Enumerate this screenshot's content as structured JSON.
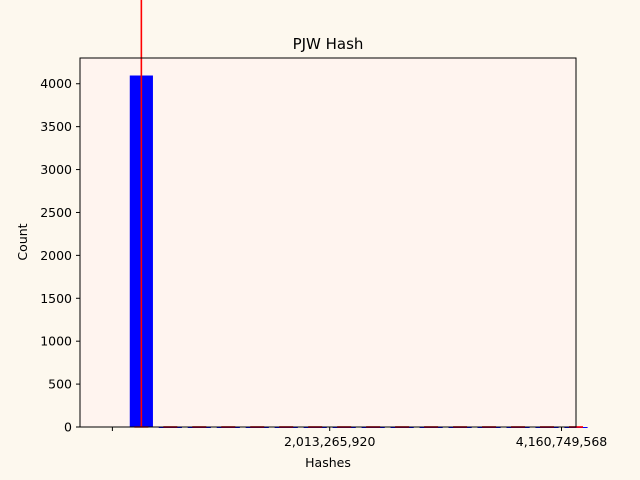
{
  "chart_data": {
    "type": "bar",
    "title": "PJW Hash",
    "xlabel": "Hashes",
    "ylabel": "Count",
    "xlim": [
      -300000000,
      4294967295
    ],
    "ylim": [
      0,
      4300
    ],
    "x_ticks": [
      {
        "value": 0,
        "label": ""
      },
      {
        "value": 2013265920,
        "label": "2,013,265,920"
      },
      {
        "value": 4160749568,
        "label": "4,160,749,568"
      }
    ],
    "y_ticks": [
      0,
      500,
      1000,
      1500,
      2000,
      2500,
      3000,
      3500,
      4000
    ],
    "series": [
      {
        "values": [
          {
            "x": 268435456,
            "count": 4096,
            "error": 4096
          },
          {
            "x": 536870912,
            "count": 0,
            "error": 0
          },
          {
            "x": 805306368,
            "count": 0,
            "error": 0
          },
          {
            "x": 1073741824,
            "count": 0,
            "error": 0
          },
          {
            "x": 1342177280,
            "count": 0,
            "error": 0
          },
          {
            "x": 1610612736,
            "count": 0,
            "error": 0
          },
          {
            "x": 1879048192,
            "count": 0,
            "error": 0
          },
          {
            "x": 2147483648,
            "count": 0,
            "error": 0
          },
          {
            "x": 2415919104,
            "count": 0,
            "error": 0
          },
          {
            "x": 2684354560,
            "count": 0,
            "error": 0
          },
          {
            "x": 2952790016,
            "count": 0,
            "error": 0
          },
          {
            "x": 3221225472,
            "count": 0,
            "error": 0
          },
          {
            "x": 3489660928,
            "count": 0,
            "error": 0
          },
          {
            "x": 3758096384,
            "count": 0,
            "error": 0
          },
          {
            "x": 4026531840,
            "count": 0,
            "error": 0
          },
          {
            "x": 4294967295,
            "count": 0,
            "error": 0
          }
        ]
      }
    ],
    "grid": false,
    "colors": {
      "figure_background": "#fdf8ee",
      "axes_background": "#fff4ef",
      "bar": "#0000ff",
      "error_bar": "#ff0000"
    }
  }
}
